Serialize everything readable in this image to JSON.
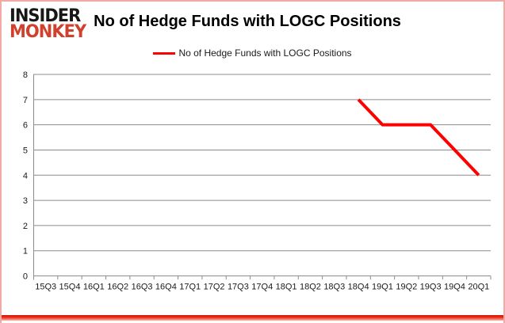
{
  "logo": {
    "line1": "INSIDER",
    "line2": "MONKEY"
  },
  "header": {
    "title": "No of Hedge Funds with LOGC Positions"
  },
  "legend": {
    "label": "No of Hedge Funds with LOGC Positions"
  },
  "colors": {
    "series_red": "#ff0000",
    "logo_black": "#171717",
    "logo_red": "#d0402c",
    "gridline_gray": "#8c8c8c",
    "axis_gray": "#8c8c8c",
    "border_pink": "#f1aba4"
  },
  "chart_data": {
    "type": "line",
    "title": "No of Hedge Funds with LOGC Positions",
    "categories": [
      "15Q3",
      "15Q4",
      "16Q1",
      "16Q2",
      "16Q3",
      "16Q4",
      "17Q1",
      "17Q2",
      "17Q3",
      "17Q4",
      "18Q1",
      "18Q2",
      "18Q3",
      "18Q4",
      "19Q1",
      "19Q2",
      "19Q3",
      "19Q4",
      "20Q1"
    ],
    "series": [
      {
        "name": "No of Hedge Funds with LOGC Positions",
        "color": "#ff0000",
        "values": [
          null,
          null,
          null,
          null,
          null,
          null,
          null,
          null,
          null,
          null,
          null,
          null,
          null,
          7,
          6,
          6,
          6,
          5,
          4
        ]
      }
    ],
    "xlabel": "",
    "ylabel": "",
    "ylim": [
      0,
      8
    ],
    "yticks": [
      0,
      1,
      2,
      3,
      4,
      5,
      6,
      7,
      8
    ],
    "grid": true,
    "legend_position": "top"
  }
}
